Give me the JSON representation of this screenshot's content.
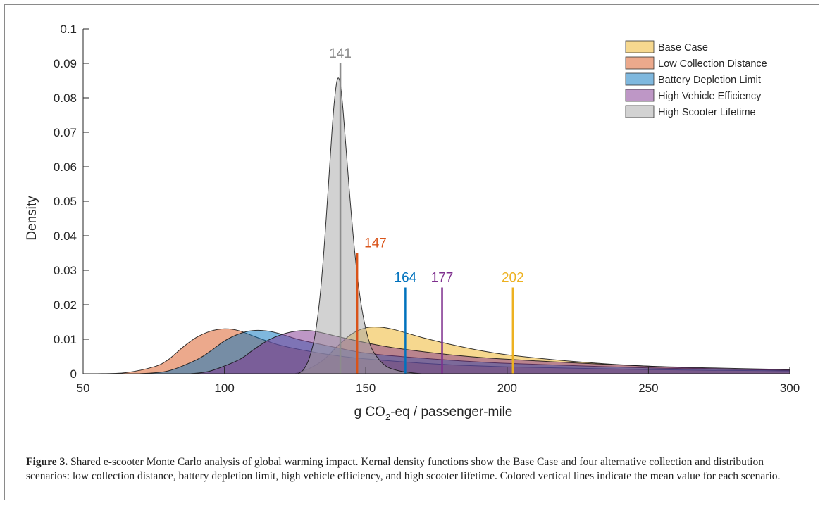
{
  "chart_data": {
    "type": "area",
    "xlabel_main": "g CO",
    "xlabel_sub": "2",
    "xlabel_rest": "-eq / passenger-mile",
    "ylabel": "Density",
    "xlim": [
      50,
      300
    ],
    "ylim": [
      0,
      0.1
    ],
    "xticks": [
      50,
      100,
      150,
      200,
      250,
      300
    ],
    "xtick_labels": [
      "50",
      "100",
      "150",
      "200",
      "250",
      "300"
    ],
    "yticks": [
      0,
      0.01,
      0.02,
      0.03,
      0.04,
      0.05,
      0.06,
      0.07,
      0.08,
      0.09,
      0.1
    ],
    "ytick_labels": [
      "0",
      "0.01",
      "0.02",
      "0.03",
      "0.04",
      "0.05",
      "0.06",
      "0.07",
      "0.08",
      "0.09",
      "0.1"
    ],
    "grid": false,
    "legend_position": "top-right",
    "series": [
      {
        "name": "Base Case",
        "color": "#EDB120",
        "mean": 202,
        "mean_label": "202",
        "mean_line_top": 0.025,
        "x": [
          125,
          130,
          135,
          140,
          145,
          150,
          155,
          160,
          170,
          180,
          190,
          200,
          220,
          240,
          260,
          280,
          300
        ],
        "y": [
          0,
          0.0015,
          0.004,
          0.008,
          0.0115,
          0.0133,
          0.0135,
          0.0128,
          0.0105,
          0.0085,
          0.0068,
          0.0055,
          0.0038,
          0.0026,
          0.0018,
          0.0013,
          0.001
        ]
      },
      {
        "name": "Low Collection Distance",
        "color": "#D95319",
        "mean": 147,
        "mean_label": "147",
        "mean_line_top": 0.035,
        "x": [
          55,
          65,
          75,
          80,
          85,
          90,
          95,
          100,
          105,
          110,
          115,
          120,
          130,
          140,
          150,
          175,
          200,
          250,
          300
        ],
        "y": [
          0,
          0.0003,
          0.002,
          0.004,
          0.0075,
          0.0105,
          0.0123,
          0.013,
          0.0125,
          0.011,
          0.0095,
          0.0082,
          0.0065,
          0.0052,
          0.0043,
          0.0028,
          0.002,
          0.0012,
          0.0008
        ]
      },
      {
        "name": "Battery Depletion Limit",
        "color": "#0072BD",
        "mean": 164,
        "mean_label": "164",
        "mean_line_top": 0.025,
        "x": [
          70,
          80,
          90,
          95,
          100,
          105,
          110,
          115,
          120,
          125,
          130,
          140,
          150,
          170,
          200,
          250,
          300
        ],
        "y": [
          0,
          0.0008,
          0.004,
          0.0065,
          0.0095,
          0.0115,
          0.0125,
          0.0124,
          0.0115,
          0.0102,
          0.0092,
          0.0075,
          0.006,
          0.0045,
          0.003,
          0.0017,
          0.001
        ]
      },
      {
        "name": "High Vehicle Efficiency",
        "color": "#7E2F8E",
        "mean": 177,
        "mean_label": "177",
        "mean_line_top": 0.025,
        "x": [
          88,
          95,
          105,
          110,
          115,
          120,
          125,
          130,
          135,
          140,
          150,
          160,
          180,
          200,
          250,
          300
        ],
        "y": [
          0,
          0.0008,
          0.004,
          0.0068,
          0.0095,
          0.0113,
          0.0123,
          0.0125,
          0.0118,
          0.0108,
          0.009,
          0.0075,
          0.0055,
          0.0042,
          0.0022,
          0.0012
        ]
      },
      {
        "name": "High Scooter Lifetime",
        "color": "#A6A6A6",
        "mean": 141,
        "mean_label": "141",
        "mean_line_top": 0.09,
        "x": [
          126,
          128,
          130,
          132,
          134,
          136,
          138,
          139,
          140,
          141,
          142,
          144,
          146,
          148,
          150,
          152,
          155,
          158,
          162,
          166,
          170
        ],
        "y": [
          0,
          0.0012,
          0.0045,
          0.011,
          0.024,
          0.045,
          0.07,
          0.08,
          0.0855,
          0.084,
          0.076,
          0.055,
          0.036,
          0.022,
          0.013,
          0.0075,
          0.0038,
          0.0018,
          0.0008,
          0.0003,
          0
        ]
      }
    ]
  },
  "caption": {
    "fig_label": "Figure 3.",
    "text": " Shared e-scooter Monte Carlo analysis of global warming impact. Kernal density functions show the Base Case and four alternative collection and distribution scenarios: low collection distance, battery depletion limit, high vehicle efficiency, and high scooter lifetime. Colored vertical lines indicate the mean value for each scenario."
  }
}
